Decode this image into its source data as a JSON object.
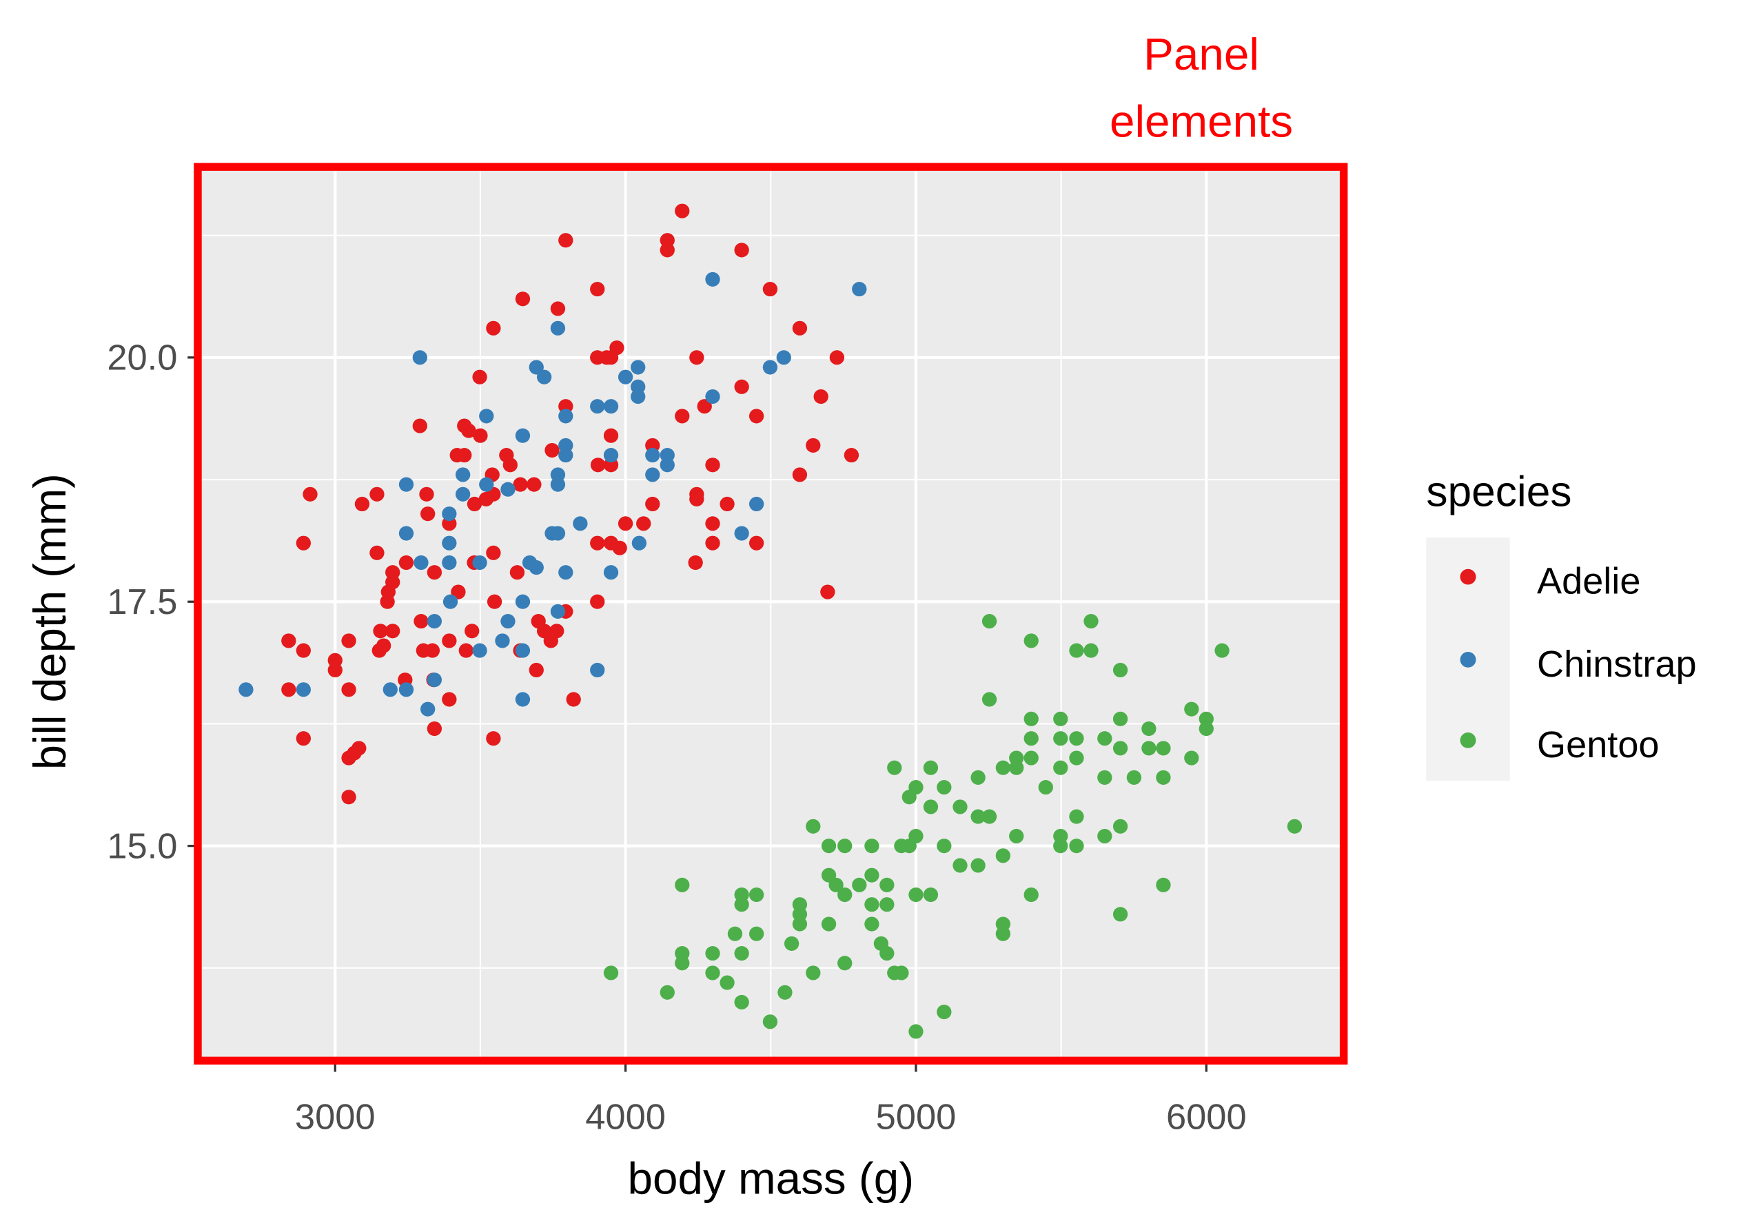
{
  "annotation": {
    "line1": "Panel",
    "line2": "elements",
    "color": "#FF0000"
  },
  "chart_data": {
    "type": "scatter",
    "xlabel": "body mass (g)",
    "ylabel": "bill depth (mm)",
    "xlim": [
      2527,
      6477
    ],
    "ylim": [
      12.79,
      21.94
    ],
    "x_ticks": [
      3000,
      4000,
      5000,
      6000
    ],
    "x_tick_labels": [
      "3000",
      "4000",
      "5000",
      "6000"
    ],
    "y_ticks": [
      15.0,
      17.5,
      20.0
    ],
    "y_tick_labels": [
      "15.0",
      "17.5",
      "20.0"
    ],
    "grid": true,
    "panel_background": "#EBEBEB",
    "legend": {
      "title": "species",
      "placement": "right"
    },
    "series": [
      {
        "name": "Adelie",
        "color": "#E41A1C",
        "points": [
          [
            4195,
            21.5
          ],
          [
            3794,
            21.2
          ],
          [
            4144,
            21.2
          ],
          [
            4144,
            21.1
          ],
          [
            4400,
            21.1
          ],
          [
            3903,
            20.7
          ],
          [
            4498,
            20.7
          ],
          [
            3646,
            20.6
          ],
          [
            3767,
            20.5
          ],
          [
            3545,
            20.3
          ],
          [
            4600,
            20.3
          ],
          [
            4728,
            20.0
          ],
          [
            4245,
            20.0
          ],
          [
            3903,
            20.0
          ],
          [
            3935,
            20.0
          ],
          [
            3970,
            20.1
          ],
          [
            3950,
            20.0
          ],
          [
            3498,
            19.8
          ],
          [
            4400,
            19.7
          ],
          [
            4673,
            19.6
          ],
          [
            4195,
            19.4
          ],
          [
            4272,
            19.5
          ],
          [
            4451,
            19.4
          ],
          [
            3794,
            19.5
          ],
          [
            3292,
            19.3
          ],
          [
            3445,
            19.3
          ],
          [
            3460,
            19.25
          ],
          [
            3500,
            19.2
          ],
          [
            3950,
            19.2
          ],
          [
            4646,
            19.1
          ],
          [
            4778,
            19.0
          ],
          [
            3420,
            19.0
          ],
          [
            3445,
            19.0
          ],
          [
            3590,
            19.0
          ],
          [
            4093,
            19.1
          ],
          [
            4300,
            18.9
          ],
          [
            3905,
            18.9
          ],
          [
            3950,
            18.9
          ],
          [
            3747,
            19.05
          ],
          [
            4600,
            18.8
          ],
          [
            3541,
            18.8
          ],
          [
            3603,
            18.9
          ],
          [
            3685,
            18.7
          ],
          [
            3638,
            18.7
          ],
          [
            2914,
            18.6
          ],
          [
            3315,
            18.6
          ],
          [
            4245,
            18.6
          ],
          [
            4245,
            18.55
          ],
          [
            4350,
            18.5
          ],
          [
            4093,
            18.5
          ],
          [
            3480,
            18.5
          ],
          [
            3520,
            18.55
          ],
          [
            3545,
            18.6
          ],
          [
            3093,
            18.5
          ],
          [
            3144,
            18.6
          ],
          [
            3319,
            18.4
          ],
          [
            4300,
            18.3
          ],
          [
            3393,
            18.3
          ],
          [
            4000,
            18.3
          ],
          [
            4062,
            18.3
          ],
          [
            2891,
            18.1
          ],
          [
            4300,
            18.1
          ],
          [
            4451,
            18.1
          ],
          [
            4241,
            17.9
          ],
          [
            3903,
            18.1
          ],
          [
            3950,
            18.1
          ],
          [
            3980,
            18.05
          ],
          [
            4696,
            17.6
          ],
          [
            3144,
            18.0
          ],
          [
            3198,
            17.8
          ],
          [
            3198,
            17.7
          ],
          [
            3245,
            17.9
          ],
          [
            3342,
            17.8
          ],
          [
            3479,
            17.9
          ],
          [
            3545,
            18.0
          ],
          [
            3627,
            17.8
          ],
          [
            3424,
            17.6
          ],
          [
            3183,
            17.6
          ],
          [
            3180,
            17.5
          ],
          [
            3903,
            17.5
          ],
          [
            3296,
            17.3
          ],
          [
            3549,
            17.5
          ],
          [
            3794,
            17.4
          ],
          [
            3700,
            17.3
          ],
          [
            3156,
            17.2
          ],
          [
            3198,
            17.2
          ],
          [
            3471,
            17.2
          ],
          [
            3720,
            17.2
          ],
          [
            2840,
            17.1
          ],
          [
            3047,
            17.1
          ],
          [
            3393,
            17.1
          ],
          [
            3304,
            17.0
          ],
          [
            3335,
            17.0
          ],
          [
            3451,
            17.0
          ],
          [
            3638,
            17.0
          ],
          [
            3743,
            17.1
          ],
          [
            3763,
            17.2
          ],
          [
            2891,
            17.0
          ],
          [
            3000,
            16.9
          ],
          [
            3000,
            16.8
          ],
          [
            3152,
            17.0
          ],
          [
            3167,
            17.05
          ],
          [
            3693,
            16.8
          ],
          [
            3241,
            16.7
          ],
          [
            3339,
            16.7
          ],
          [
            2840,
            16.6
          ],
          [
            3047,
            16.6
          ],
          [
            3821,
            16.5
          ],
          [
            3393,
            16.5
          ],
          [
            3342,
            16.2
          ],
          [
            2891,
            16.1
          ],
          [
            3545,
            16.1
          ],
          [
            3066,
            15.95
          ],
          [
            3047,
            15.9
          ],
          [
            3082,
            16.0
          ],
          [
            3047,
            15.5
          ]
        ]
      },
      {
        "name": "Chinstrap",
        "color": "#377EB8",
        "points": [
          [
            4300,
            20.8
          ],
          [
            4805,
            20.7
          ],
          [
            3767,
            20.3
          ],
          [
            3292,
            20.0
          ],
          [
            4545,
            20.0
          ],
          [
            4498,
            19.9
          ],
          [
            3693,
            19.9
          ],
          [
            3720,
            19.8
          ],
          [
            4043,
            19.9
          ],
          [
            4043,
            19.7
          ],
          [
            4043,
            19.6
          ],
          [
            4000,
            19.8
          ],
          [
            4300,
            19.6
          ],
          [
            3794,
            19.4
          ],
          [
            3903,
            19.5
          ],
          [
            3950,
            19.5
          ],
          [
            3521,
            19.4
          ],
          [
            3646,
            19.2
          ],
          [
            3794,
            19.1
          ],
          [
            3794,
            19.0
          ],
          [
            4093,
            19.0
          ],
          [
            4144,
            19.0
          ],
          [
            4144,
            18.9
          ],
          [
            4093,
            18.8
          ],
          [
            3950,
            19.0
          ],
          [
            3440,
            18.8
          ],
          [
            3440,
            18.6
          ],
          [
            3521,
            18.7
          ],
          [
            3245,
            18.7
          ],
          [
            3595,
            18.65
          ],
          [
            3767,
            18.8
          ],
          [
            3767,
            18.7
          ],
          [
            4451,
            18.5
          ],
          [
            3393,
            18.4
          ],
          [
            3844,
            18.3
          ],
          [
            3245,
            18.2
          ],
          [
            4400,
            18.2
          ],
          [
            3747,
            18.2
          ],
          [
            3767,
            18.2
          ],
          [
            3393,
            18.1
          ],
          [
            4047,
            18.1
          ],
          [
            3296,
            17.9
          ],
          [
            3393,
            17.9
          ],
          [
            3498,
            17.9
          ],
          [
            3670,
            17.9
          ],
          [
            3693,
            17.85
          ],
          [
            3794,
            17.8
          ],
          [
            3950,
            17.8
          ],
          [
            3397,
            17.5
          ],
          [
            3646,
            17.5
          ],
          [
            3342,
            17.3
          ],
          [
            3595,
            17.3
          ],
          [
            3767,
            17.4
          ],
          [
            3576,
            17.1
          ],
          [
            3498,
            17.0
          ],
          [
            3646,
            17.0
          ],
          [
            3903,
            16.8
          ],
          [
            3342,
            16.7
          ],
          [
            2693,
            16.6
          ],
          [
            2891,
            16.6
          ],
          [
            3190,
            16.6
          ],
          [
            3245,
            16.6
          ],
          [
            3319,
            16.4
          ],
          [
            3646,
            16.5
          ]
        ]
      },
      {
        "name": "Gentoo",
        "color": "#4DAF4A",
        "points": [
          [
            5253,
            17.3
          ],
          [
            5603,
            17.3
          ],
          [
            5397,
            17.1
          ],
          [
            5553,
            17.0
          ],
          [
            5603,
            17.0
          ],
          [
            6054,
            17.0
          ],
          [
            5704,
            16.8
          ],
          [
            5253,
            16.5
          ],
          [
            5949,
            16.4
          ],
          [
            5397,
            16.3
          ],
          [
            5498,
            16.3
          ],
          [
            5704,
            16.3
          ],
          [
            6000,
            16.3
          ],
          [
            6000,
            16.2
          ],
          [
            5802,
            16.2
          ],
          [
            5397,
            16.1
          ],
          [
            5498,
            16.1
          ],
          [
            5553,
            16.1
          ],
          [
            5650,
            16.1
          ],
          [
            5704,
            16.0
          ],
          [
            5802,
            16.0
          ],
          [
            5852,
            16.0
          ],
          [
            5346,
            15.9
          ],
          [
            5397,
            15.9
          ],
          [
            5553,
            15.9
          ],
          [
            5949,
            15.9
          ],
          [
            5300,
            15.8
          ],
          [
            5346,
            15.8
          ],
          [
            5498,
            15.8
          ],
          [
            4926,
            15.8
          ],
          [
            5051,
            15.8
          ],
          [
            5214,
            15.7
          ],
          [
            5000,
            15.6
          ],
          [
            5650,
            15.7
          ],
          [
            5751,
            15.7
          ],
          [
            5852,
            15.7
          ],
          [
            5447,
            15.6
          ],
          [
            5097,
            15.6
          ],
          [
            4977,
            15.5
          ],
          [
            5051,
            15.4
          ],
          [
            5152,
            15.4
          ],
          [
            5553,
            15.3
          ],
          [
            5214,
            15.3
          ],
          [
            5253,
            15.3
          ],
          [
            6304,
            15.2
          ],
          [
            4646,
            15.2
          ],
          [
            5704,
            15.2
          ],
          [
            5000,
            15.1
          ],
          [
            5346,
            15.1
          ],
          [
            5498,
            15.1
          ],
          [
            5553,
            15.0
          ],
          [
            5498,
            15.0
          ],
          [
            5650,
            15.1
          ],
          [
            4700,
            15.0
          ],
          [
            4755,
            15.0
          ],
          [
            4848,
            15.0
          ],
          [
            4950,
            15.0
          ],
          [
            4977,
            15.0
          ],
          [
            5097,
            15.0
          ],
          [
            5300,
            14.9
          ],
          [
            5152,
            14.8
          ],
          [
            5214,
            14.8
          ],
          [
            4700,
            14.7
          ],
          [
            4725,
            14.6
          ],
          [
            4755,
            14.5
          ],
          [
            4805,
            14.6
          ],
          [
            4848,
            14.7
          ],
          [
            4900,
            14.6
          ],
          [
            4195,
            14.6
          ],
          [
            5852,
            14.6
          ],
          [
            5397,
            14.5
          ],
          [
            4400,
            14.5
          ],
          [
            4451,
            14.5
          ],
          [
            4400,
            14.4
          ],
          [
            4848,
            14.4
          ],
          [
            4900,
            14.4
          ],
          [
            5000,
            14.5
          ],
          [
            5051,
            14.5
          ],
          [
            4600,
            14.4
          ],
          [
            4600,
            14.3
          ],
          [
            5704,
            14.3
          ],
          [
            4700,
            14.2
          ],
          [
            4848,
            14.2
          ],
          [
            5300,
            14.2
          ],
          [
            5300,
            14.1
          ],
          [
            4600,
            14.2
          ],
          [
            4377,
            14.1
          ],
          [
            4451,
            14.1
          ],
          [
            4572,
            14.0
          ],
          [
            4880,
            14.0
          ],
          [
            4900,
            13.9
          ],
          [
            4300,
            13.9
          ],
          [
            4400,
            13.9
          ],
          [
            4195,
            13.9
          ],
          [
            4195,
            13.8
          ],
          [
            4755,
            13.8
          ],
          [
            3950,
            13.7
          ],
          [
            4300,
            13.7
          ],
          [
            4646,
            13.7
          ],
          [
            4926,
            13.7
          ],
          [
            4950,
            13.7
          ],
          [
            4350,
            13.6
          ],
          [
            4144,
            13.5
          ],
          [
            4549,
            13.5
          ],
          [
            4400,
            13.4
          ],
          [
            4498,
            13.2
          ],
          [
            5097,
            13.3
          ],
          [
            5000,
            13.1
          ]
        ]
      }
    ]
  }
}
